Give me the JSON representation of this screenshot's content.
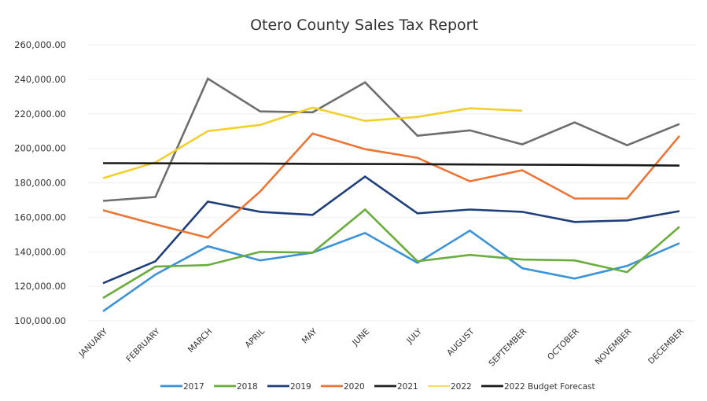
{
  "chart_data": {
    "type": "line",
    "title": "Otero County Sales Tax Report",
    "xlabel": "",
    "ylabel": "",
    "ylim": [
      100000,
      260000
    ],
    "yticks": [
      "100,000.00",
      "120,000.00",
      "140,000.00",
      "160,000.00",
      "180,000.00",
      "200,000.00",
      "220,000.00",
      "240,000.00",
      "260,000.00"
    ],
    "ytick_values": [
      100000,
      120000,
      140000,
      160000,
      180000,
      200000,
      220000,
      240000,
      260000
    ],
    "grid": true,
    "legend_position": "bottom",
    "categories": [
      "JANUARY",
      "FEBRUARY",
      "MARCH",
      "APRIL",
      "MAY",
      "JUNE",
      "JULY",
      "AUGUST",
      "SEPTEMBER",
      "OCTOBER",
      "NOVEMBER",
      "DECEMBER"
    ],
    "series": [
      {
        "name": "2017",
        "color": "#3a93d9",
        "legend_color": "#3a93d9",
        "values": [
          105500,
          126800,
          143200,
          135000,
          139500,
          150900,
          133600,
          152300,
          130500,
          124500,
          131800,
          145000
        ]
      },
      {
        "name": "2018",
        "color": "#6aad3d",
        "legend_color": "#6aad3d",
        "values": [
          113200,
          131400,
          132300,
          140000,
          139500,
          164500,
          134500,
          138200,
          135500,
          135000,
          128200,
          154500
        ]
      },
      {
        "name": "2019",
        "color": "#1f3f7a",
        "legend_color": "#1f3f7a",
        "values": [
          121800,
          134500,
          169100,
          163200,
          161400,
          183600,
          162300,
          164500,
          163200,
          157300,
          158200,
          163600
        ]
      },
      {
        "name": "2020",
        "color": "#ec7435",
        "legend_color": "#ec7435",
        "values": [
          164100,
          155900,
          148200,
          175000,
          208600,
          199500,
          194500,
          180900,
          187300,
          170900,
          170900,
          207200
        ]
      },
      {
        "name": "2021",
        "color": "#6e6e6e",
        "legend_color": "#222222",
        "values": [
          169500,
          171800,
          240400,
          221400,
          220900,
          238200,
          207300,
          210400,
          202300,
          215000,
          201800,
          214100
        ]
      },
      {
        "name": "2022",
        "color": "#f2cf2a",
        "legend_color": "#f2cf2a",
        "values": [
          182700,
          191800,
          210000,
          213600,
          223600,
          215900,
          218200,
          223200,
          221800,
          null,
          null,
          null
        ]
      },
      {
        "name": "2022 Budget Forecast",
        "color": "#1a1a1a",
        "legend_color": "#1a1a1a",
        "values": [
          191400,
          191300,
          191200,
          191100,
          191000,
          190900,
          190800,
          190600,
          190500,
          190400,
          190200,
          190000
        ]
      }
    ]
  }
}
